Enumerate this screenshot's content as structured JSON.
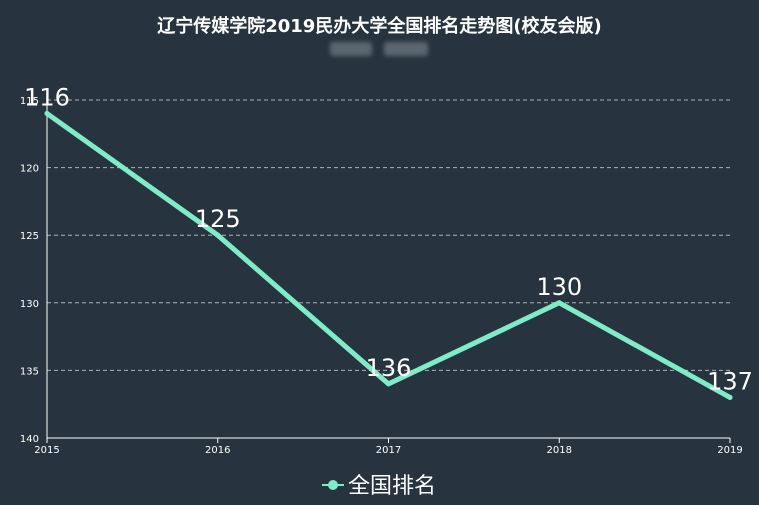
{
  "chart_data": {
    "type": "line",
    "title": "辽宁传媒学院2019民办大学全国排名走势图(校友会版)",
    "x": [
      "2015",
      "2016",
      "2017",
      "2018",
      "2019"
    ],
    "series": [
      {
        "name": "全国排名",
        "values": [
          116,
          125,
          136,
          130,
          137
        ],
        "color": "#7fecc8"
      }
    ],
    "ylim": [
      115,
      140
    ],
    "y_inverse": true,
    "yticks": [
      115,
      120,
      125,
      130,
      135,
      140
    ],
    "grid": true,
    "legend": "bottom-center"
  },
  "colors": {
    "background": "#27343f",
    "line": "#7fecc8",
    "axis": "#ffffff",
    "grid": "#aab2b9"
  }
}
